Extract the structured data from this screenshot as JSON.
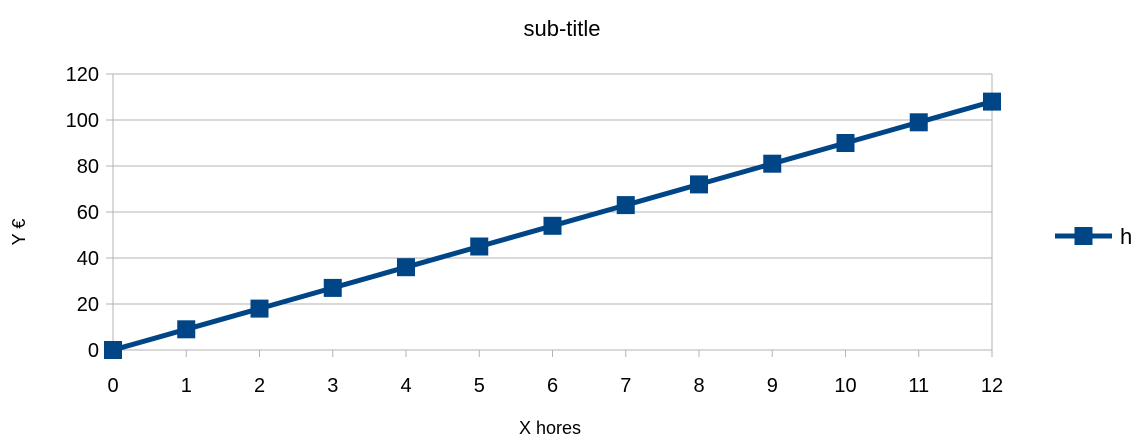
{
  "chart_data": {
    "type": "line",
    "title": "sub-title",
    "xlabel": "X hores",
    "ylabel": "Y €",
    "xlim": [
      0,
      12
    ],
    "ylim": [
      0,
      120
    ],
    "x_ticks": [
      0,
      1,
      2,
      3,
      4,
      5,
      6,
      7,
      8,
      9,
      10,
      11,
      12
    ],
    "y_ticks": [
      0,
      20,
      40,
      60,
      80,
      100,
      120
    ],
    "grid": "horizontal",
    "legend_position": "right",
    "marker": "square",
    "series": [
      {
        "name": "h",
        "color": "#004586",
        "x": [
          0,
          1,
          2,
          3,
          4,
          5,
          6,
          7,
          8,
          9,
          10,
          11,
          12
        ],
        "values": [
          0,
          9,
          18,
          27,
          36,
          45,
          54,
          63,
          72,
          81,
          90,
          99,
          108
        ]
      }
    ]
  }
}
